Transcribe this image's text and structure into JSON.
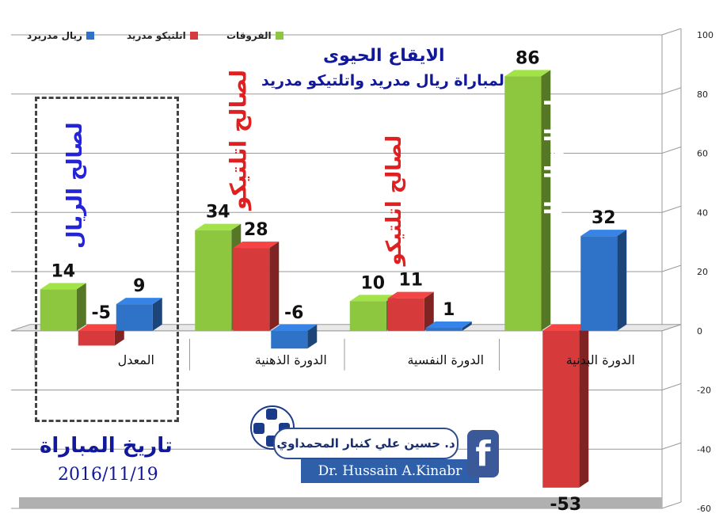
{
  "chart_data": {
    "type": "bar",
    "title": "الايقاع الحيوى",
    "subtitle": "لمباراة ريال مدريد واتلتيكو مدريد",
    "categories": [
      "الدورة البدنية",
      "الدورة النفسية",
      "الدورة الذهنية",
      "المعدل"
    ],
    "series": [
      {
        "name": "الفروقات",
        "color": "#8dc63f",
        "values": [
          86,
          10,
          34,
          14
        ]
      },
      {
        "name": "اتلتيكو مدريد",
        "color": "#d63a3a",
        "values": [
          -53,
          11,
          28,
          -5
        ]
      },
      {
        "name": "ريال مدريرد",
        "color": "#2f73c9",
        "values": [
          32,
          1,
          -6,
          9
        ]
      }
    ],
    "value_labels": [
      [
        "86",
        "-53",
        "32"
      ],
      [
        "10",
        "11",
        "1"
      ],
      [
        "34",
        "28",
        "-6"
      ],
      [
        "14",
        "-5",
        "9"
      ]
    ],
    "ylim": [
      -60,
      100
    ],
    "yticks": [
      "100",
      "80",
      "60",
      "40",
      "20",
      "0",
      "-20",
      "-40",
      "-60"
    ],
    "y_axis_position": "right",
    "grid": true,
    "legend_position": "top-left",
    "annotations": [
      {
        "text": "لصالح الريال",
        "color": "#ffffff",
        "category": "الدورة البدنية"
      },
      {
        "text": "لصالح اتلتيكو",
        "color": "#e02020",
        "category": "الدورة النفسية"
      },
      {
        "text": "لصالح اتلتيكو",
        "color": "#e02020",
        "category": "الدورة الذهنية"
      },
      {
        "text": "لصالح الريال",
        "color": "#2424d6",
        "category": "المعدل"
      }
    ]
  },
  "legend": [
    {
      "label": "الفروقات",
      "color": "#8dc63f"
    },
    {
      "label": "اتلتيكو مدريد",
      "color": "#d63a3a"
    },
    {
      "label": "ريال مدريرد",
      "color": "#2f73c9"
    }
  ],
  "branding": {
    "name_ar": "د. حسين علي كنبار المحمداوي",
    "name_en": "Dr. Hussain A.Kinabr",
    "facebook_icon": "facebook-icon",
    "ball_icon": "football-icon"
  },
  "match_date": {
    "label": "تاريخ المباراة",
    "value": "2016/11/19"
  }
}
